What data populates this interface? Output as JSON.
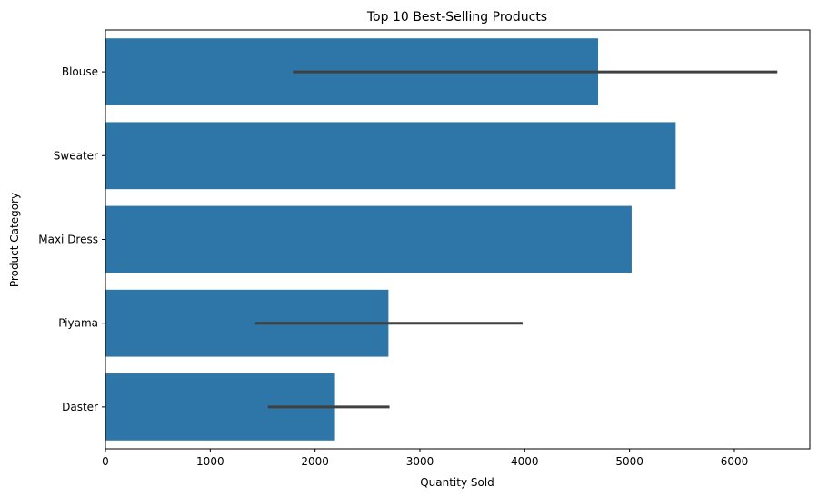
{
  "chart_data": {
    "type": "bar",
    "orientation": "horizontal",
    "title": "Top 10 Best-Selling Products",
    "xlabel": "Quantity Sold",
    "ylabel": "Product Category",
    "categories": [
      "Blouse",
      "Sweater",
      "Maxi Dress",
      "Piyama",
      "Daster"
    ],
    "values": [
      4700,
      5440,
      5020,
      2700,
      2190
    ],
    "error_bars": [
      {
        "category": "Blouse",
        "low": 1790,
        "high": 6410
      },
      {
        "category": "Sweater",
        "low": null,
        "high": null
      },
      {
        "category": "Maxi Dress",
        "low": null,
        "high": null
      },
      {
        "category": "Piyama",
        "low": 1430,
        "high": 3980
      },
      {
        "category": "Daster",
        "low": 1550,
        "high": 2710
      }
    ],
    "xlim": [
      0,
      6720
    ],
    "xticks": [
      0,
      1000,
      2000,
      3000,
      4000,
      5000,
      6000
    ],
    "grid": false,
    "legend": false,
    "colors": {
      "bar": "#2e75a8",
      "error": "#404040",
      "axis": "#000000"
    }
  }
}
